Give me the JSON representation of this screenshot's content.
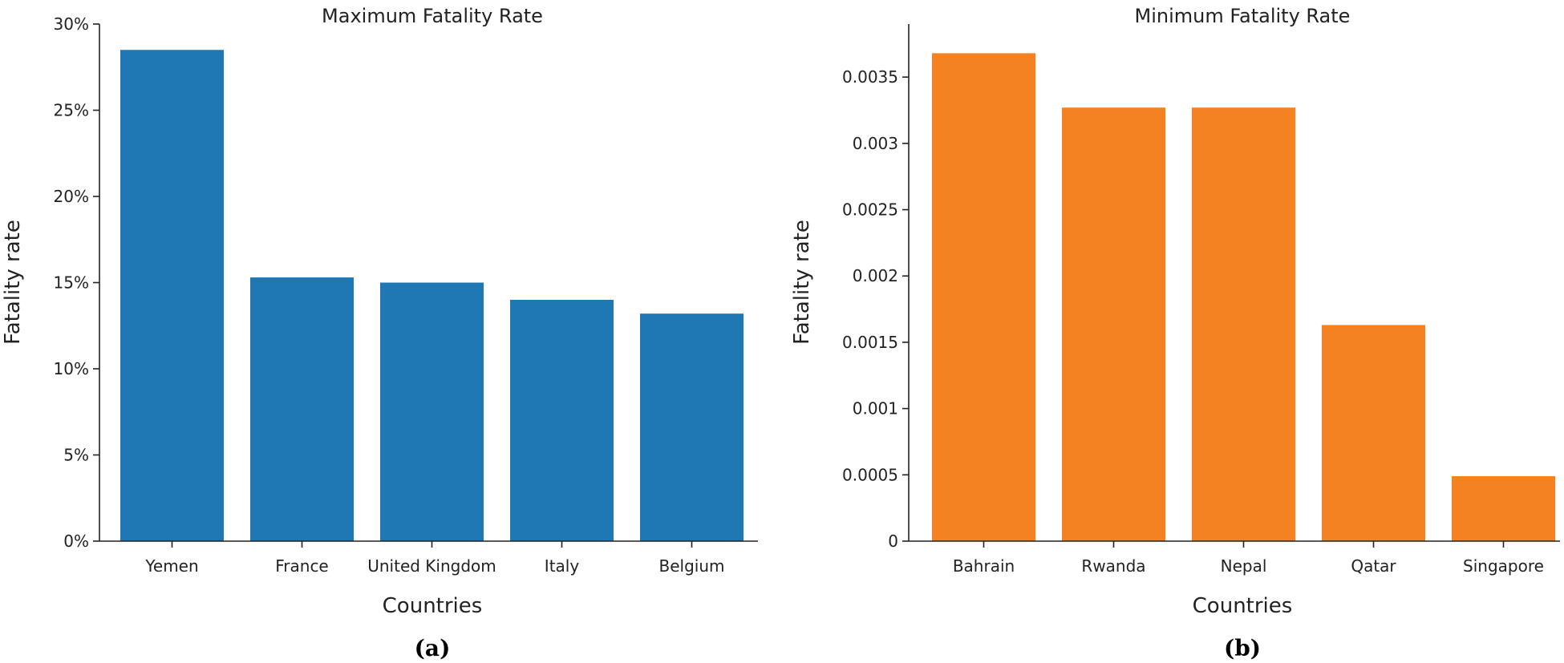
{
  "chart_data": [
    {
      "type": "bar",
      "title": "Maximum Fatality Rate",
      "xlabel": "Countries",
      "ylabel": "Fatality rate",
      "panel_label": "(a)",
      "categories": [
        "Yemen",
        "France",
        "United Kingdom",
        "Italy",
        "Belgium"
      ],
      "values": [
        0.285,
        0.153,
        0.15,
        0.14,
        0.132
      ],
      "ylim": [
        0,
        0.3
      ],
      "yticks": [
        0,
        0.05,
        0.1,
        0.15,
        0.2,
        0.25,
        0.3
      ],
      "ytick_labels": [
        "0%",
        "5%",
        "10%",
        "15%",
        "20%",
        "25%",
        "30%"
      ],
      "color": "#1f77b4",
      "grid": false
    },
    {
      "type": "bar",
      "title": "Minimum Fatality Rate",
      "xlabel": "Countries",
      "ylabel": "Fatality rate",
      "panel_label": "(b)",
      "categories": [
        "Bahrain",
        "Rwanda",
        "Nepal",
        "Qatar",
        "Singapore"
      ],
      "values": [
        0.00368,
        0.00327,
        0.00327,
        0.00163,
        0.00049
      ],
      "ylim": [
        0,
        0.0039
      ],
      "yticks": [
        0,
        0.0005,
        0.001,
        0.0015,
        0.002,
        0.0025,
        0.003,
        0.0035
      ],
      "ytick_labels": [
        "0",
        "0.0005",
        "0.001",
        "0.0015",
        "0.002",
        "0.0025",
        "0.003",
        "0.0035"
      ],
      "color": "#f58220",
      "grid": false
    }
  ]
}
